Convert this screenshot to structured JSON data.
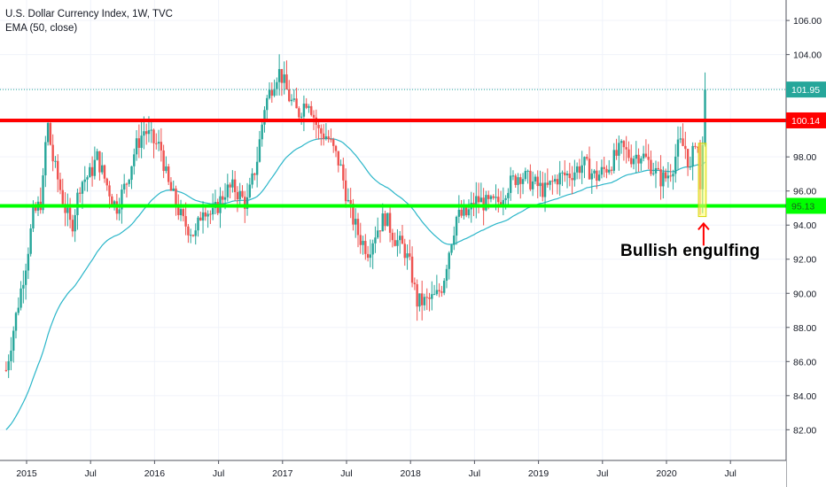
{
  "legend": {
    "symbol_line": "U.S. Dollar Currency Index, 1W, TVC",
    "indicator_line": "EMA (50, close)"
  },
  "annotation": "Bullish engulfing",
  "colors": {
    "up": "#26a69a",
    "down": "#ef5350",
    "ema": "#2bb6c9",
    "resistance": "#ff0000",
    "support": "#00ff00",
    "highlight": "#ffff66",
    "arrow": "#ff0000",
    "last_price": "#26a69a"
  },
  "chart_data": {
    "type": "candlestick",
    "title": "U.S. Dollar Currency Index, 1W, TVC",
    "indicator": "EMA (50, close)",
    "ylim": [
      80.2,
      107.2
    ],
    "y_ticks": [
      "82.00",
      "84.00",
      "86.00",
      "88.00",
      "90.00",
      "92.00",
      "94.00",
      "96.00",
      "98.00",
      "100.00",
      "102.00",
      "104.00",
      "106.00"
    ],
    "x_ticks": [
      {
        "label": "2015",
        "t": 2015.0
      },
      {
        "label": "Jul",
        "t": 2015.5
      },
      {
        "label": "2016",
        "t": 2016.0
      },
      {
        "label": "Jul",
        "t": 2016.5
      },
      {
        "label": "2017",
        "t": 2017.0
      },
      {
        "label": "Jul",
        "t": 2017.5
      },
      {
        "label": "2018",
        "t": 2018.0
      },
      {
        "label": "Jul",
        "t": 2018.5
      },
      {
        "label": "2019",
        "t": 2019.0
      },
      {
        "label": "Jul",
        "t": 2019.5
      },
      {
        "label": "2020",
        "t": 2020.0
      },
      {
        "label": "Jul",
        "t": 2020.5
      }
    ],
    "last_price": {
      "label": "101.95",
      "value": 101.95
    },
    "levels": [
      {
        "name": "resistance",
        "label": "100.14",
        "value": 100.14
      },
      {
        "name": "support",
        "label": "95.13",
        "value": 95.13
      }
    ],
    "highlight_box": {
      "t0": 2020.25,
      "t1": 2020.31,
      "y0": 94.5,
      "y1": 98.8
    },
    "arrow": {
      "t": 2020.29,
      "y_tip": 94.2,
      "y_tail": 92.8
    },
    "waypoints": [
      [
        2014.84,
        85.5
      ],
      [
        2014.9,
        88.0
      ],
      [
        2015.0,
        92.0
      ],
      [
        2015.05,
        94.5
      ],
      [
        2015.12,
        95.5
      ],
      [
        2015.16,
        100.2
      ],
      [
        2015.2,
        98.0
      ],
      [
        2015.3,
        95.0
      ],
      [
        2015.35,
        93.8
      ],
      [
        2015.42,
        96.5
      ],
      [
        2015.5,
        97.0
      ],
      [
        2015.55,
        98.0
      ],
      [
        2015.62,
        96.5
      ],
      [
        2015.7,
        95.0
      ],
      [
        2015.78,
        96.5
      ],
      [
        2015.85,
        98.5
      ],
      [
        2015.92,
        99.6
      ],
      [
        2016.0,
        98.8
      ],
      [
        2016.05,
        98.5
      ],
      [
        2016.1,
        96.5
      ],
      [
        2016.15,
        95.6
      ],
      [
        2016.22,
        94.2
      ],
      [
        2016.32,
        93.4
      ],
      [
        2016.38,
        95.2
      ],
      [
        2016.45,
        94.5
      ],
      [
        2016.55,
        96.0
      ],
      [
        2016.62,
        96.2
      ],
      [
        2016.72,
        95.2
      ],
      [
        2016.8,
        97.8
      ],
      [
        2016.86,
        101.0
      ],
      [
        2016.95,
        102.8
      ],
      [
        2016.98,
        103.0
      ],
      [
        2017.05,
        101.5
      ],
      [
        2017.12,
        100.5
      ],
      [
        2017.2,
        101.5
      ],
      [
        2017.28,
        99.5
      ],
      [
        2017.35,
        99.2
      ],
      [
        2017.45,
        97.5
      ],
      [
        2017.52,
        95.0
      ],
      [
        2017.6,
        93.3
      ],
      [
        2017.67,
        92.5
      ],
      [
        2017.72,
        93.5
      ],
      [
        2017.8,
        94.5
      ],
      [
        2017.88,
        93.2
      ],
      [
        2017.95,
        92.6
      ],
      [
        2018.0,
        91.5
      ],
      [
        2018.05,
        89.5
      ],
      [
        2018.12,
        89.5
      ],
      [
        2018.2,
        89.8
      ],
      [
        2018.25,
        90.5
      ],
      [
        2018.3,
        92.5
      ],
      [
        2018.36,
        94.5
      ],
      [
        2018.44,
        94.6
      ],
      [
        2018.52,
        95.5
      ],
      [
        2018.6,
        95.2
      ],
      [
        2018.68,
        95.3
      ],
      [
        2018.75,
        96.2
      ],
      [
        2018.85,
        97.0
      ],
      [
        2018.95,
        96.5
      ],
      [
        2019.05,
        96.0
      ],
      [
        2019.15,
        96.8
      ],
      [
        2019.25,
        97.0
      ],
      [
        2019.35,
        97.6
      ],
      [
        2019.45,
        96.8
      ],
      [
        2019.55,
        97.5
      ],
      [
        2019.65,
        98.5
      ],
      [
        2019.72,
        98.0
      ],
      [
        2019.8,
        98.2
      ],
      [
        2019.88,
        97.5
      ],
      [
        2019.95,
        96.7
      ],
      [
        2020.0,
        96.8
      ],
      [
        2020.05,
        97.5
      ],
      [
        2020.1,
        98.8
      ],
      [
        2020.15,
        98.5
      ],
      [
        2020.19,
        97.0
      ],
      [
        2020.22,
        99.2
      ],
      [
        2020.245,
        98.5
      ],
      [
        2020.27,
        96.2
      ],
      [
        2020.29,
        99.2
      ],
      [
        2020.31,
        101.95
      ]
    ],
    "grid": true,
    "legend_position": "top-left"
  }
}
